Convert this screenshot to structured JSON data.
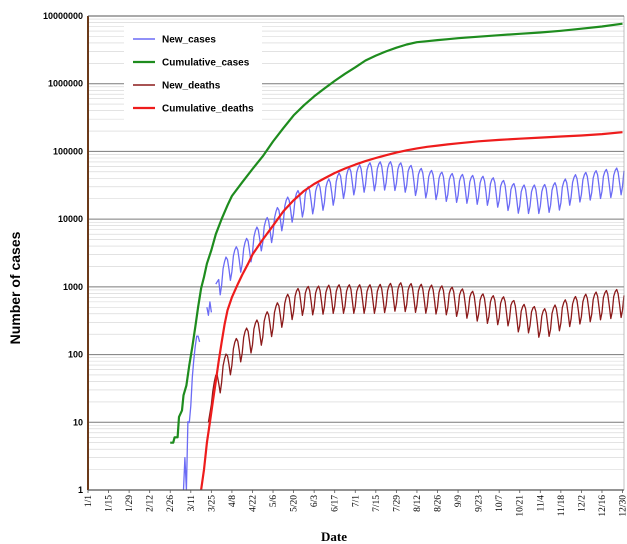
{
  "chart_data": {
    "type": "line",
    "title": "",
    "xlabel": "Date",
    "ylabel": "Number of cases",
    "yscale": "log",
    "ylim": [
      1,
      10000000
    ],
    "yticks": [
      1,
      10,
      100,
      1000,
      10000,
      100000,
      1000000,
      10000000
    ],
    "ytick_labels": [
      "1",
      "10",
      "100",
      "1000",
      "10000",
      "100000",
      "1000000",
      "10000000"
    ],
    "x_tick_labels": [
      "1/1",
      "1/15",
      "1/29",
      "2/12",
      "2/26",
      "3/11",
      "3/25",
      "4/8",
      "4/22",
      "5/6",
      "5/20",
      "6/3",
      "6/17",
      "7/1",
      "7/15",
      "7/29",
      "8/12",
      "8/26",
      "9/9",
      "9/23",
      "10/7",
      "10/21",
      "11/4",
      "11/18",
      "12/2",
      "12/16",
      "12/30"
    ],
    "x_tick_days": [
      1,
      15,
      29,
      43,
      57,
      71,
      85,
      99,
      113,
      127,
      141,
      155,
      169,
      183,
      197,
      211,
      225,
      239,
      253,
      267,
      281,
      295,
      309,
      323,
      337,
      351,
      365
    ],
    "xlim_days": [
      1,
      366
    ],
    "grid": true,
    "legend": {
      "placement": "top-left"
    },
    "series": [
      {
        "name": "New_cases",
        "color": "#6b6bf5",
        "style": "weekly-oscillating",
        "segments": [
          [
            [
              66,
              1
            ],
            [
              67,
              3
            ],
            [
              68,
              1
            ],
            [
              69,
              12
            ],
            [
              70,
              18
            ],
            [
              71,
              25
            ],
            [
              72,
              40
            ],
            [
              73,
              60
            ],
            [
              74,
              90
            ],
            [
              75,
              150
            ],
            [
              76,
              220
            ],
            [
              77,
              280
            ]
          ],
          [
            [
              82,
              500
            ],
            [
              83,
              380
            ],
            [
              84,
              600
            ],
            [
              85,
              420
            ]
          ],
          [
            [
              88,
              1100
            ],
            [
              92,
              1500
            ],
            [
              95,
              1900
            ],
            [
              99,
              2400
            ],
            [
              103,
              2800
            ],
            [
              107,
              3200
            ],
            [
              113,
              4500
            ],
            [
              120,
              6500
            ],
            [
              127,
              8500
            ],
            [
              134,
              13000
            ],
            [
              141,
              17000
            ],
            [
              148,
              20000
            ],
            [
              155,
              22000
            ],
            [
              162,
              25000
            ],
            [
              169,
              30000
            ],
            [
              176,
              38000
            ],
            [
              183,
              42000
            ],
            [
              190,
              46000
            ],
            [
              197,
              48000
            ],
            [
              204,
              49000
            ],
            [
              211,
              48000
            ],
            [
              218,
              45000
            ],
            [
              225,
              40000
            ],
            [
              232,
              37000
            ],
            [
              239,
              35000
            ],
            [
              246,
              33000
            ],
            [
              253,
              32000
            ],
            [
              260,
              31000
            ],
            [
              267,
              30000
            ],
            [
              274,
              29000
            ],
            [
              281,
              27000
            ],
            [
              288,
              24000
            ],
            [
              295,
              22000
            ],
            [
              302,
              22000
            ],
            [
              309,
              22000
            ],
            [
              316,
              23000
            ],
            [
              323,
              25000
            ],
            [
              330,
              30000
            ],
            [
              337,
              33000
            ],
            [
              344,
              35000
            ],
            [
              351,
              37000
            ],
            [
              358,
              38000
            ],
            [
              363,
              40000
            ],
            [
              366,
              45000
            ]
          ]
        ]
      },
      {
        "name": "Cumulative_cases",
        "color": "#1e8c1e",
        "points": [
          [
            57,
            5
          ],
          [
            59,
            5
          ],
          [
            60,
            6
          ],
          [
            62,
            6
          ],
          [
            63,
            12
          ],
          [
            65,
            15
          ],
          [
            66,
            25
          ],
          [
            68,
            35
          ],
          [
            70,
            70
          ],
          [
            72,
            130
          ],
          [
            74,
            250
          ],
          [
            76,
            500
          ],
          [
            78,
            950
          ],
          [
            80,
            1400
          ],
          [
            82,
            2200
          ],
          [
            85,
            3500
          ],
          [
            88,
            6000
          ],
          [
            92,
            10000
          ],
          [
            96,
            16000
          ],
          [
            99,
            22000
          ],
          [
            106,
            35000
          ],
          [
            113,
            55000
          ],
          [
            120,
            85000
          ],
          [
            127,
            140000
          ],
          [
            134,
            220000
          ],
          [
            141,
            340000
          ],
          [
            148,
            480000
          ],
          [
            155,
            650000
          ],
          [
            162,
            850000
          ],
          [
            169,
            1100000
          ],
          [
            176,
            1400000
          ],
          [
            183,
            1750000
          ],
          [
            190,
            2200000
          ],
          [
            197,
            2600000
          ],
          [
            204,
            3000000
          ],
          [
            211,
            3400000
          ],
          [
            218,
            3800000
          ],
          [
            225,
            4100000
          ],
          [
            232,
            4250000
          ],
          [
            239,
            4400000
          ],
          [
            246,
            4550000
          ],
          [
            253,
            4700000
          ],
          [
            267,
            4950000
          ],
          [
            281,
            5200000
          ],
          [
            295,
            5450000
          ],
          [
            309,
            5700000
          ],
          [
            323,
            6050000
          ],
          [
            337,
            6500000
          ],
          [
            351,
            7000000
          ],
          [
            365,
            7700000
          ]
        ]
      },
      {
        "name": "New_deaths",
        "color": "#8b1a1a",
        "style": "weekly-oscillating",
        "segments": [
          [
            [
              83,
              10
            ],
            [
              86,
              25
            ],
            [
              89,
              40
            ],
            [
              92,
              55
            ],
            [
              95,
              70
            ],
            [
              99,
              100
            ],
            [
              106,
              150
            ],
            [
              113,
              200
            ],
            [
              120,
              260
            ],
            [
              127,
              350
            ],
            [
              134,
              480
            ],
            [
              141,
              620
            ],
            [
              148,
              700
            ],
            [
              155,
              700
            ],
            [
              162,
              720
            ],
            [
              169,
              740
            ],
            [
              176,
              740
            ],
            [
              183,
              740
            ],
            [
              190,
              740
            ],
            [
              197,
              740
            ],
            [
              204,
              760
            ],
            [
              211,
              800
            ],
            [
              218,
              780
            ],
            [
              225,
              760
            ],
            [
              232,
              740
            ],
            [
              239,
              720
            ],
            [
              246,
              700
            ],
            [
              253,
              660
            ],
            [
              260,
              620
            ],
            [
              267,
              560
            ],
            [
              274,
              520
            ],
            [
              281,
              500
            ],
            [
              288,
              480
            ],
            [
              295,
              380
            ],
            [
              302,
              380
            ],
            [
              309,
              320
            ],
            [
              316,
              340
            ],
            [
              323,
              420
            ],
            [
              330,
              480
            ],
            [
              337,
              520
            ],
            [
              344,
              560
            ],
            [
              351,
              600
            ],
            [
              358,
              620
            ],
            [
              366,
              650
            ]
          ]
        ]
      },
      {
        "name": "Cumulative_deaths",
        "color": "#ee1c1c",
        "points": [
          [
            78,
            1
          ],
          [
            80,
            2
          ],
          [
            82,
            5
          ],
          [
            84,
            10
          ],
          [
            86,
            20
          ],
          [
            88,
            40
          ],
          [
            90,
            80
          ],
          [
            92,
            150
          ],
          [
            94,
            280
          ],
          [
            96,
            450
          ],
          [
            99,
            700
          ],
          [
            103,
            1100
          ],
          [
            106,
            1500
          ],
          [
            110,
            2200
          ],
          [
            113,
            3000
          ],
          [
            120,
            5000
          ],
          [
            127,
            8000
          ],
          [
            134,
            13000
          ],
          [
            141,
            19000
          ],
          [
            148,
            26000
          ],
          [
            155,
            33000
          ],
          [
            162,
            40000
          ],
          [
            169,
            48000
          ],
          [
            176,
            56000
          ],
          [
            183,
            64000
          ],
          [
            190,
            72000
          ],
          [
            197,
            80000
          ],
          [
            204,
            88000
          ],
          [
            211,
            96000
          ],
          [
            218,
            104000
          ],
          [
            225,
            111000
          ],
          [
            232,
            117000
          ],
          [
            239,
            122000
          ],
          [
            246,
            127000
          ],
          [
            253,
            132000
          ],
          [
            267,
            141000
          ],
          [
            281,
            148000
          ],
          [
            295,
            154000
          ],
          [
            309,
            160000
          ],
          [
            323,
            166000
          ],
          [
            337,
            172000
          ],
          [
            351,
            180000
          ],
          [
            365,
            192000
          ]
        ]
      }
    ]
  }
}
